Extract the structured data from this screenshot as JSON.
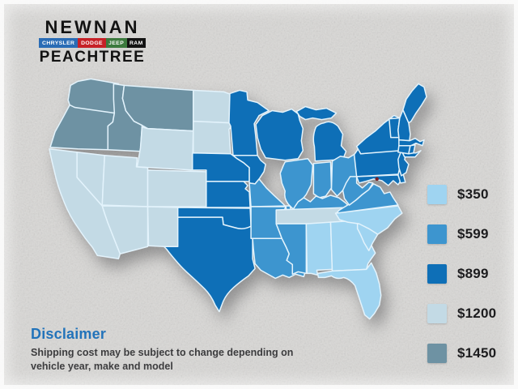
{
  "logo": {
    "dealer_name": "NEWNAN",
    "city": "PEACHTREE",
    "brands": [
      {
        "label": "CHRYSLER",
        "color": "#2a6cb5",
        "grow": 3
      },
      {
        "label": "DODGE",
        "color": "#c62127",
        "grow": 2
      },
      {
        "label": "JEEP",
        "color": "#3c7a3e",
        "grow": 1.4
      },
      {
        "label": "RAM",
        "color": "#131313",
        "grow": 1
      }
    ]
  },
  "legend": {
    "tiers": [
      {
        "id": "350",
        "label": "$350",
        "color": "#9fd4f1"
      },
      {
        "id": "599",
        "label": "$599",
        "color": "#3d95cf"
      },
      {
        "id": "899",
        "label": "$899",
        "color": "#0e6fb7"
      },
      {
        "id": "1200",
        "label": "$1200",
        "color": "#c3dae5"
      },
      {
        "id": "1450",
        "label": "$1450",
        "color": "#6e92a3"
      }
    ]
  },
  "map": {
    "border_color": "#e3f3fc",
    "dc_marker_color": "#7c2125",
    "states": [
      {
        "id": "WA",
        "name": "Washington",
        "tier": "1450"
      },
      {
        "id": "OR",
        "name": "Oregon",
        "tier": "1450"
      },
      {
        "id": "ID",
        "name": "Idaho",
        "tier": "1450"
      },
      {
        "id": "MT",
        "name": "Montana",
        "tier": "1450"
      },
      {
        "id": "CA",
        "name": "California",
        "tier": "1200"
      },
      {
        "id": "NV",
        "name": "Nevada",
        "tier": "1200"
      },
      {
        "id": "UT",
        "name": "Utah",
        "tier": "1200"
      },
      {
        "id": "AZ",
        "name": "Arizona",
        "tier": "1200"
      },
      {
        "id": "NM",
        "name": "New Mexico",
        "tier": "1200"
      },
      {
        "id": "CO",
        "name": "Colorado",
        "tier": "1200"
      },
      {
        "id": "WY",
        "name": "Wyoming",
        "tier": "1200"
      },
      {
        "id": "ND",
        "name": "North Dakota",
        "tier": "1200"
      },
      {
        "id": "SD",
        "name": "South Dakota",
        "tier": "1200"
      },
      {
        "id": "TN",
        "name": "Tennessee",
        "tier": "1200"
      },
      {
        "id": "NE",
        "name": "Nebraska",
        "tier": "899"
      },
      {
        "id": "KS",
        "name": "Kansas",
        "tier": "899"
      },
      {
        "id": "OK",
        "name": "Oklahoma",
        "tier": "899"
      },
      {
        "id": "TX",
        "name": "Texas",
        "tier": "899"
      },
      {
        "id": "MN",
        "name": "Minnesota",
        "tier": "899"
      },
      {
        "id": "IA",
        "name": "Iowa",
        "tier": "899"
      },
      {
        "id": "WI",
        "name": "Wisconsin",
        "tier": "899"
      },
      {
        "id": "MI",
        "name": "Michigan",
        "tier": "899"
      },
      {
        "id": "PA",
        "name": "Pennsylvania",
        "tier": "899"
      },
      {
        "id": "NY",
        "name": "New York",
        "tier": "899"
      },
      {
        "id": "NJ",
        "name": "New Jersey",
        "tier": "899"
      },
      {
        "id": "MD",
        "name": "Maryland",
        "tier": "899"
      },
      {
        "id": "DE",
        "name": "Delaware",
        "tier": "899"
      },
      {
        "id": "CT",
        "name": "Connecticut",
        "tier": "899"
      },
      {
        "id": "RI",
        "name": "Rhode Island",
        "tier": "899"
      },
      {
        "id": "MA",
        "name": "Massachusetts",
        "tier": "899"
      },
      {
        "id": "VT",
        "name": "Vermont",
        "tier": "899"
      },
      {
        "id": "NH",
        "name": "New Hampshire",
        "tier": "899"
      },
      {
        "id": "ME",
        "name": "Maine",
        "tier": "899"
      },
      {
        "id": "MO",
        "name": "Missouri",
        "tier": "599"
      },
      {
        "id": "AR",
        "name": "Arkansas",
        "tier": "599"
      },
      {
        "id": "LA",
        "name": "Louisiana",
        "tier": "599"
      },
      {
        "id": "MS",
        "name": "Mississippi",
        "tier": "599"
      },
      {
        "id": "IL",
        "name": "Illinois",
        "tier": "599"
      },
      {
        "id": "IN",
        "name": "Indiana",
        "tier": "599"
      },
      {
        "id": "OH",
        "name": "Ohio",
        "tier": "599"
      },
      {
        "id": "KY",
        "name": "Kentucky",
        "tier": "599"
      },
      {
        "id": "WV",
        "name": "West Virginia",
        "tier": "599"
      },
      {
        "id": "VA",
        "name": "Virginia",
        "tier": "599"
      },
      {
        "id": "AL",
        "name": "Alabama",
        "tier": "350"
      },
      {
        "id": "GA",
        "name": "Georgia",
        "tier": "350"
      },
      {
        "id": "FL",
        "name": "Florida",
        "tier": "350"
      },
      {
        "id": "SC",
        "name": "South Carolina",
        "tier": "350"
      },
      {
        "id": "NC",
        "name": "North Carolina",
        "tier": "350"
      }
    ]
  },
  "disclaimer": {
    "title": "Disclaimer",
    "body": "Shipping cost may be subject to change depending on vehicle year, make and model"
  }
}
